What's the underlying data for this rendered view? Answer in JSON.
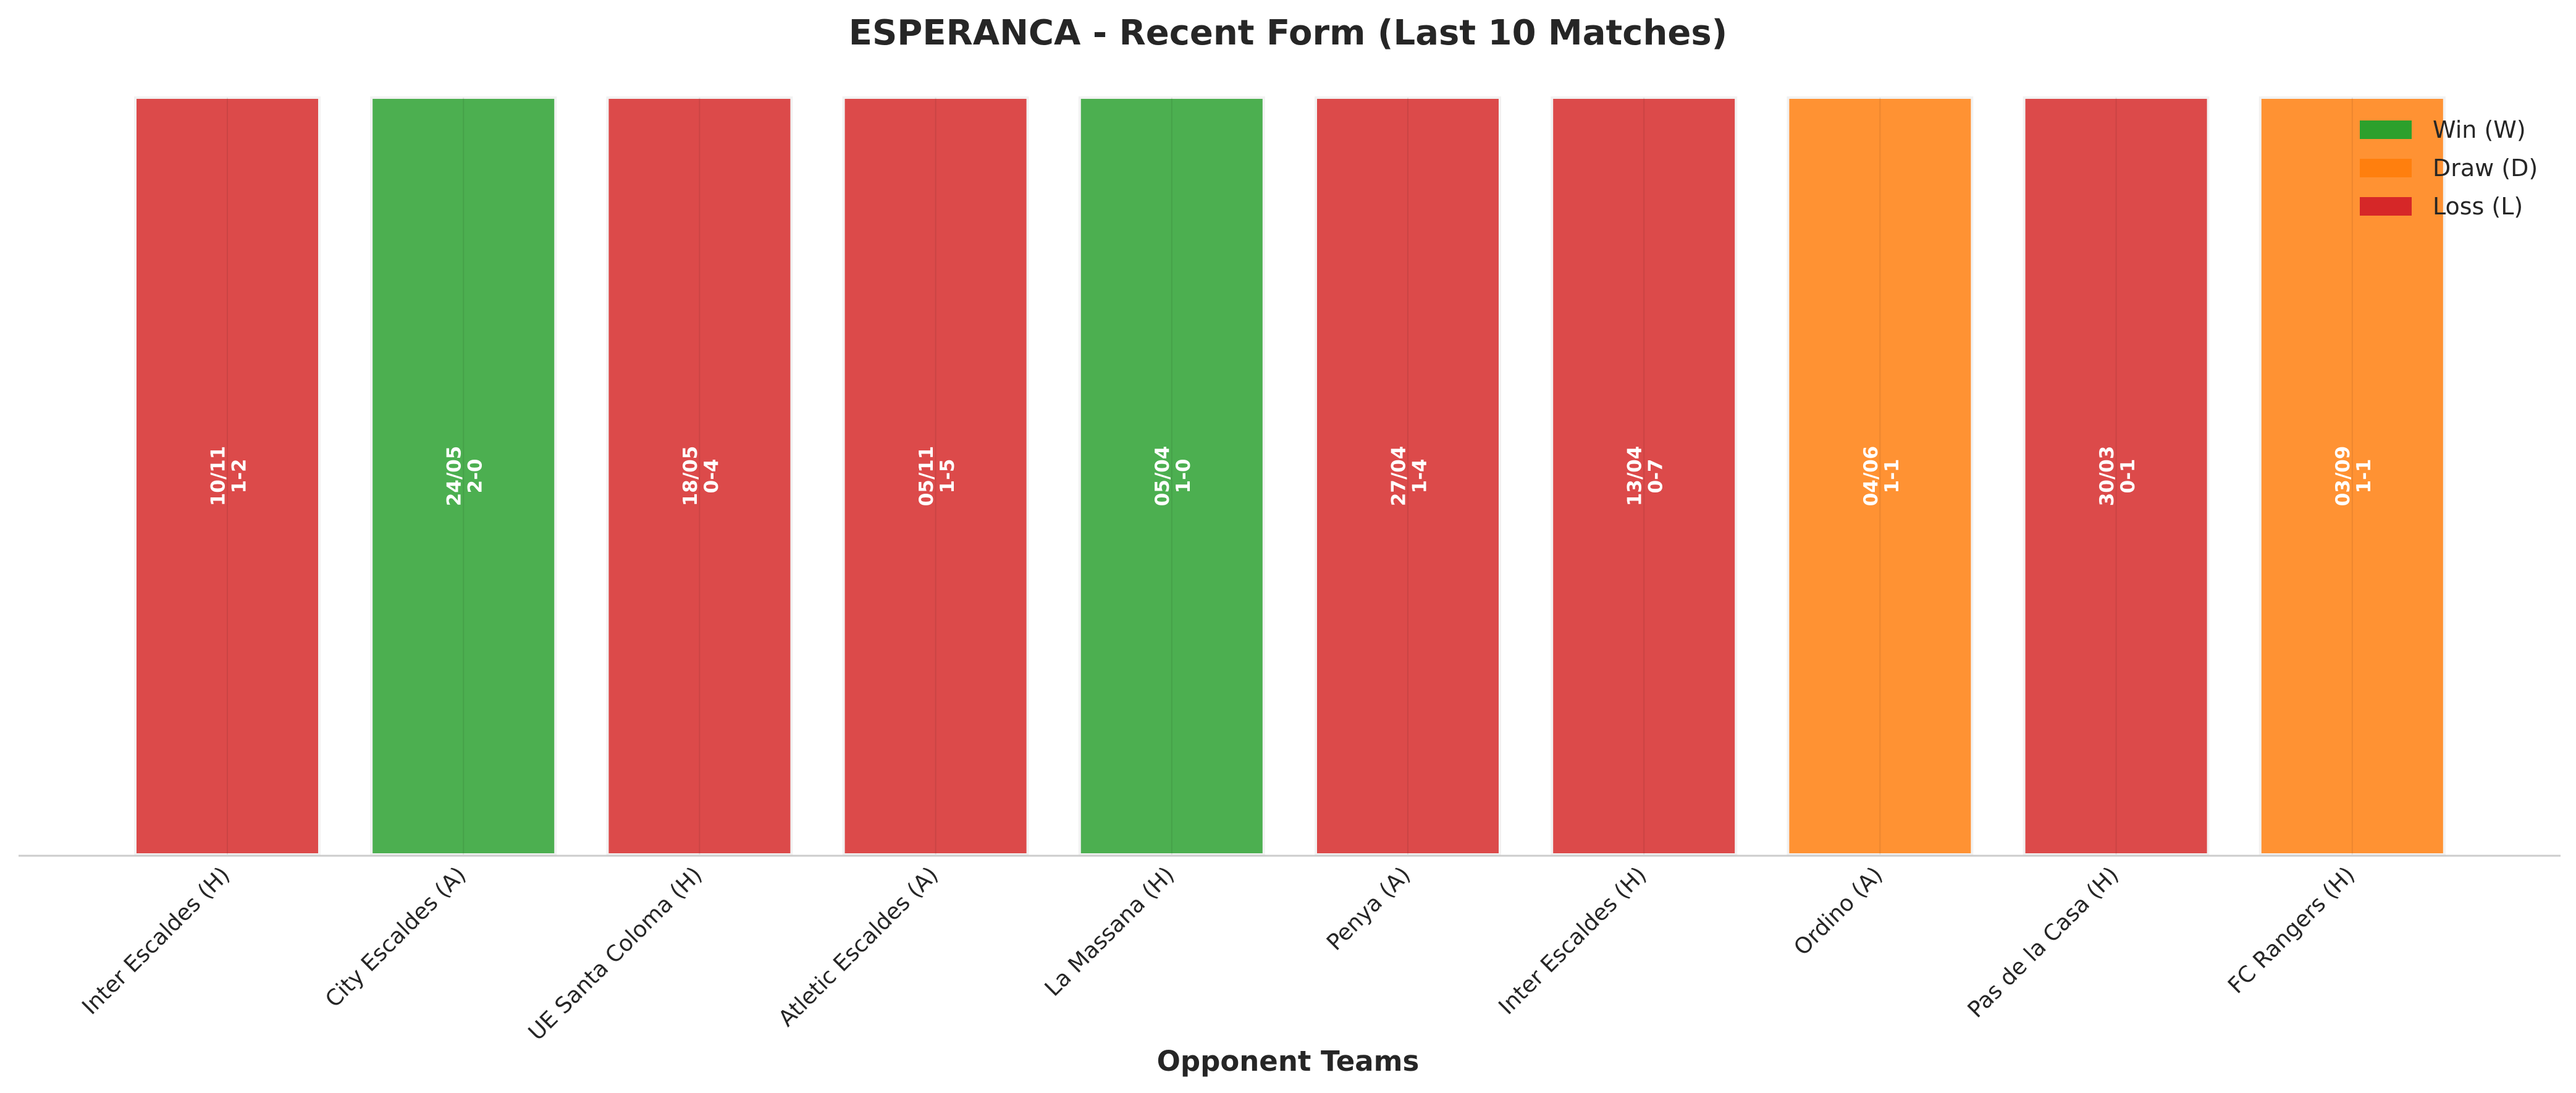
{
  "chart_data": {
    "type": "bar",
    "title": "ESPERANCA - Recent Form (Last 10 Matches)",
    "xlabel": "Opponent Teams",
    "ylabel": "",
    "grid": false,
    "legend_position": "top-right",
    "categories": [
      "Inter Escaldes (H)",
      "City Escaldes (A)",
      "UE Santa Coloma (H)",
      "Atletic Escaldes (A)",
      "La Massana (H)",
      "Penya (A)",
      "Inter Escaldes (H)",
      "Ordino (A)",
      "Pas de la Casa (H)",
      "FC Rangers (H)"
    ],
    "values": [
      1,
      1,
      1,
      1,
      1,
      1,
      1,
      1,
      1,
      1
    ],
    "ylim": [
      0,
      1
    ],
    "results": [
      "L",
      "W",
      "L",
      "L",
      "W",
      "L",
      "L",
      "D",
      "L",
      "D"
    ],
    "dates": [
      "10/11",
      "24/05",
      "18/05",
      "05/11",
      "05/04",
      "27/04",
      "13/04",
      "04/06",
      "30/03",
      "03/09"
    ],
    "scores": [
      "1-2",
      "2-0",
      "0-4",
      "1-5",
      "1-0",
      "1-4",
      "0-7",
      "1-1",
      "0-1",
      "1-1"
    ],
    "legend": [
      {
        "key": "W",
        "label": "Win (W)",
        "color": "#2ca02c"
      },
      {
        "key": "D",
        "label": "Draw (D)",
        "color": "#ff7f0e"
      },
      {
        "key": "L",
        "label": "Loss (L)",
        "color": "#d62728"
      }
    ],
    "colors": {
      "W": "#4caf50",
      "D": "#ff9233",
      "L": "#dc4a4a"
    }
  }
}
